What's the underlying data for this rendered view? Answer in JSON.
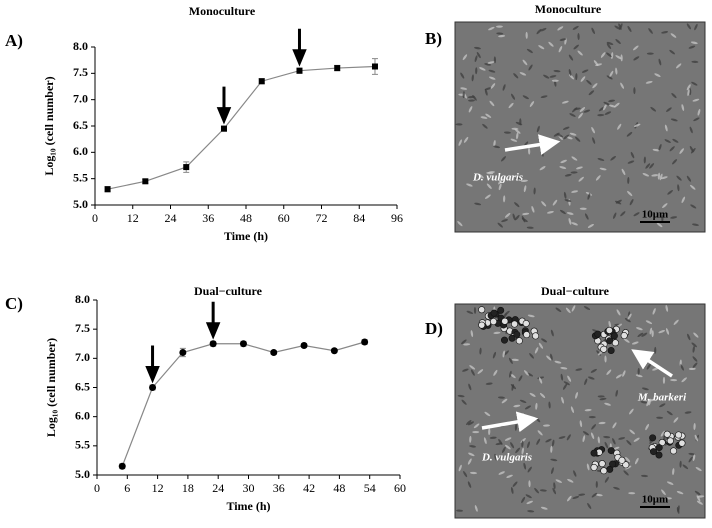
{
  "chart_data": [
    {
      "type": "line",
      "title": "Monoculture",
      "panel": "A)",
      "xlabel": "Time (h)",
      "ylabel": "Log₁₀ (cell number)",
      "marker": "square",
      "color": "#000000",
      "x": [
        4,
        16,
        29,
        41,
        53,
        65,
        77,
        89
      ],
      "values": [
        5.3,
        5.45,
        5.72,
        6.45,
        7.35,
        7.55,
        7.6,
        7.63
      ],
      "errors": [
        0.05,
        0.04,
        0.1,
        0.05,
        0.05,
        0.05,
        0.05,
        0.15
      ],
      "arrows_at": [
        41,
        65
      ],
      "xlim": [
        0,
        96
      ],
      "xticks": [
        0,
        12,
        24,
        36,
        48,
        60,
        72,
        84,
        96
      ],
      "ylim": [
        5,
        8
      ],
      "yticks": [
        {
          "value": 5,
          "label": "5.0"
        },
        {
          "value": 5.5,
          "label": "5.5"
        },
        {
          "value": 6,
          "label": "6.0"
        },
        {
          "value": 6.5,
          "label": "6.5"
        },
        {
          "value": 7,
          "label": "7.0"
        },
        {
          "value": 7.5,
          "label": "7.5"
        },
        {
          "value": 8,
          "label": "8.0"
        }
      ]
    },
    {
      "type": "line",
      "title": "Dual−culture",
      "panel": "C)",
      "xlabel": "Time (h)",
      "ylabel": "Log₁₀ (cell number)",
      "marker": "circle",
      "color": "#000000",
      "x": [
        5,
        11,
        17,
        23,
        29,
        35,
        41,
        47,
        53
      ],
      "values": [
        5.15,
        6.5,
        7.1,
        7.25,
        7.25,
        7.1,
        7.22,
        7.13,
        7.28
      ],
      "errors": [
        0.04,
        0.04,
        0.07,
        0.04,
        0.04,
        0.03,
        0.03,
        0.03,
        0.04
      ],
      "arrows_at": [
        11,
        23
      ],
      "xlim": [
        0,
        60
      ],
      "xticks": [
        0,
        6,
        12,
        18,
        24,
        30,
        36,
        42,
        48,
        54,
        60
      ],
      "ylim": [
        5,
        8
      ],
      "yticks": [
        {
          "value": 5,
          "label": "5.0"
        },
        {
          "value": 5.5,
          "label": "5.5"
        },
        {
          "value": 6,
          "label": "6.0"
        },
        {
          "value": 6.5,
          "label": "6.5"
        },
        {
          "value": 7,
          "label": "7.0"
        },
        {
          "value": 7.5,
          "label": "7.5"
        },
        {
          "value": 8,
          "label": "8.0"
        }
      ]
    }
  ],
  "images": [
    {
      "title": "Monoculture",
      "panel": "B)",
      "labels": [
        "D. vulgaris"
      ],
      "scale": "10μm"
    },
    {
      "title": "Dual−culture",
      "panel": "D)",
      "labels": [
        "M. barkeri",
        "D. vulgaris"
      ],
      "scale": "10μm"
    }
  ]
}
